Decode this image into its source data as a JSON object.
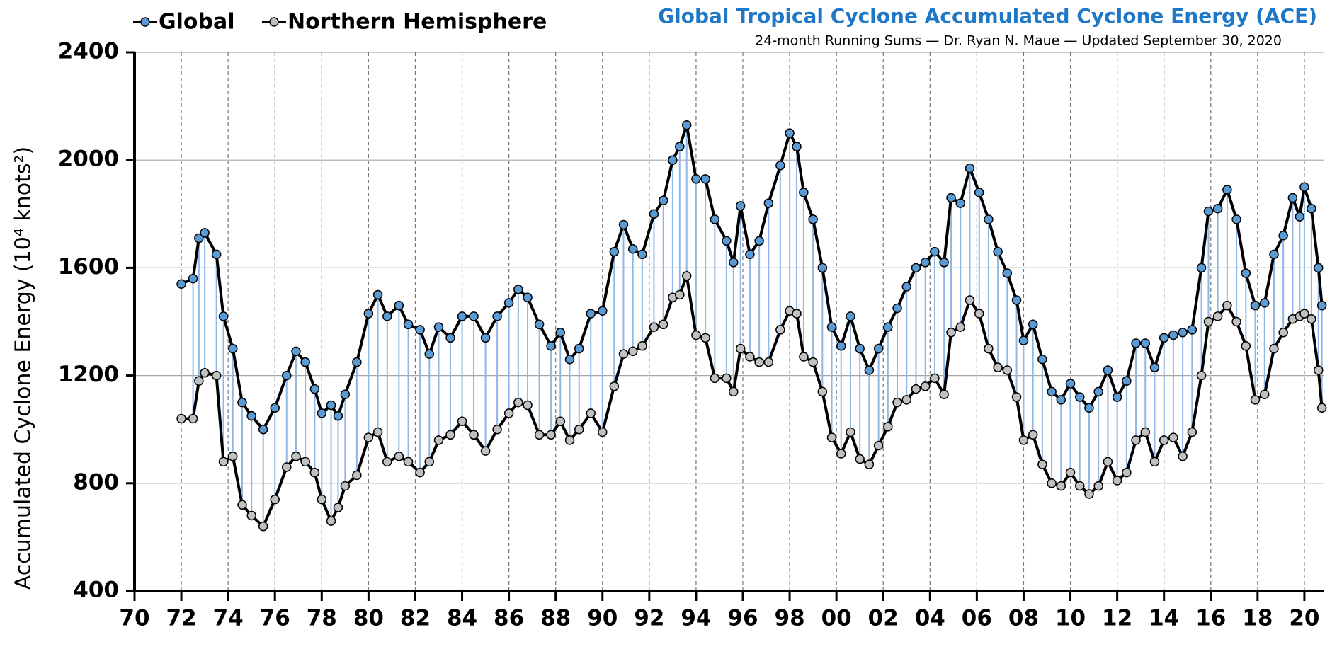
{
  "chart_data": {
    "type": "line",
    "title": "Global Tropical Cyclone Accumulated Cyclone Energy (ACE)",
    "subtitle": "24-month Running Sums — Dr. Ryan N. Maue — Updated September 30, 2020",
    "y_label": "Accumulated Cyclone Energy (10⁴ knots²)",
    "x": [
      1972.0,
      1972.5,
      1972.75,
      1973.0,
      1973.5,
      1973.8,
      1974.2,
      1974.6,
      1975.0,
      1975.5,
      1976.0,
      1976.5,
      1976.9,
      1977.3,
      1977.7,
      1978.0,
      1978.4,
      1978.7,
      1979.0,
      1979.5,
      1980.0,
      1980.4,
      1980.8,
      1981.3,
      1981.7,
      1982.2,
      1982.6,
      1983.0,
      1983.5,
      1984.0,
      1984.5,
      1985.0,
      1985.5,
      1986.0,
      1986.4,
      1986.8,
      1987.3,
      1987.8,
      1988.2,
      1988.6,
      1989.0,
      1989.5,
      1990.0,
      1990.5,
      1990.9,
      1991.3,
      1991.7,
      1992.2,
      1992.6,
      1993.0,
      1993.3,
      1993.6,
      1994.0,
      1994.4,
      1994.8,
      1995.3,
      1995.6,
      1995.9,
      1996.3,
      1996.7,
      1997.1,
      1997.6,
      1998.0,
      1998.3,
      1998.6,
      1999.0,
      1999.4,
      1999.8,
      2000.2,
      2000.6,
      2001.0,
      2001.4,
      2001.8,
      2002.2,
      2002.6,
      2003.0,
      2003.4,
      2003.8,
      2004.2,
      2004.6,
      2004.9,
      2005.3,
      2005.7,
      2006.1,
      2006.5,
      2006.9,
      2007.3,
      2007.7,
      2008.0,
      2008.4,
      2008.8,
      2009.2,
      2009.6,
      2010.0,
      2010.4,
      2010.8,
      2011.2,
      2011.6,
      2012.0,
      2012.4,
      2012.8,
      2013.2,
      2013.6,
      2014.0,
      2014.4,
      2014.8,
      2015.2,
      2015.6,
      2015.9,
      2016.3,
      2016.7,
      2017.1,
      2017.5,
      2017.9,
      2018.3,
      2018.7,
      2019.1,
      2019.5,
      2019.8,
      2020.0,
      2020.3,
      2020.6,
      2020.75
    ],
    "series": [
      {
        "name": "Global",
        "color": "#5b9bd5",
        "values": [
          1540,
          1560,
          1710,
          1730,
          1650,
          1420,
          1300,
          1100,
          1050,
          1000,
          1080,
          1200,
          1290,
          1250,
          1150,
          1060,
          1090,
          1050,
          1130,
          1250,
          1430,
          1500,
          1420,
          1460,
          1390,
          1370,
          1280,
          1380,
          1340,
          1420,
          1420,
          1340,
          1420,
          1470,
          1520,
          1490,
          1390,
          1310,
          1360,
          1260,
          1300,
          1430,
          1440,
          1660,
          1760,
          1670,
          1650,
          1800,
          1850,
          2000,
          2050,
          2130,
          1930,
          1930,
          1780,
          1700,
          1620,
          1830,
          1650,
          1700,
          1840,
          1980,
          2100,
          2050,
          1880,
          1780,
          1600,
          1380,
          1310,
          1420,
          1300,
          1220,
          1300,
          1380,
          1450,
          1530,
          1600,
          1620,
          1660,
          1620,
          1860,
          1840,
          1970,
          1880,
          1780,
          1660,
          1580,
          1480,
          1330,
          1390,
          1260,
          1140,
          1110,
          1170,
          1120,
          1080,
          1140,
          1220,
          1120,
          1180,
          1320,
          1320,
          1230,
          1340,
          1350,
          1360,
          1370,
          1600,
          1810,
          1820,
          1890,
          1780,
          1580,
          1460,
          1470,
          1650,
          1720,
          1860,
          1790,
          1900,
          1820,
          1600,
          1460
        ]
      },
      {
        "name": "Northern Hemisphere",
        "color": "#c0c0c0",
        "values": [
          1040,
          1040,
          1180,
          1210,
          1200,
          880,
          900,
          720,
          680,
          640,
          740,
          860,
          900,
          880,
          840,
          740,
          660,
          710,
          790,
          830,
          970,
          990,
          880,
          900,
          880,
          840,
          880,
          960,
          980,
          1030,
          980,
          920,
          1000,
          1060,
          1100,
          1090,
          980,
          980,
          1030,
          960,
          1000,
          1060,
          990,
          1160,
          1280,
          1290,
          1310,
          1380,
          1390,
          1490,
          1500,
          1570,
          1350,
          1340,
          1190,
          1190,
          1140,
          1300,
          1270,
          1250,
          1250,
          1370,
          1440,
          1430,
          1270,
          1250,
          1140,
          970,
          910,
          990,
          890,
          870,
          940,
          1010,
          1100,
          1110,
          1150,
          1160,
          1190,
          1130,
          1360,
          1380,
          1480,
          1430,
          1300,
          1230,
          1220,
          1120,
          960,
          980,
          870,
          800,
          790,
          840,
          790,
          760,
          790,
          880,
          810,
          840,
          960,
          990,
          880,
          960,
          970,
          900,
          990,
          1200,
          1400,
          1420,
          1460,
          1400,
          1310,
          1110,
          1130,
          1300,
          1360,
          1410,
          1420,
          1430,
          1410,
          1220,
          1080
        ]
      }
    ],
    "xlim": [
      1970,
      2020.85
    ],
    "xticks": [
      {
        "value": 1970,
        "label": "70"
      },
      {
        "value": 1972,
        "label": "72"
      },
      {
        "value": 1974,
        "label": "74"
      },
      {
        "value": 1976,
        "label": "76"
      },
      {
        "value": 1978,
        "label": "78"
      },
      {
        "value": 1980,
        "label": "80"
      },
      {
        "value": 1982,
        "label": "82"
      },
      {
        "value": 1984,
        "label": "84"
      },
      {
        "value": 1986,
        "label": "86"
      },
      {
        "value": 1988,
        "label": "88"
      },
      {
        "value": 1990,
        "label": "90"
      },
      {
        "value": 1992,
        "label": "92"
      },
      {
        "value": 1994,
        "label": "94"
      },
      {
        "value": 1996,
        "label": "96"
      },
      {
        "value": 1998,
        "label": "98"
      },
      {
        "value": 2000,
        "label": "00"
      },
      {
        "value": 2002,
        "label": "02"
      },
      {
        "value": 2004,
        "label": "04"
      },
      {
        "value": 2006,
        "label": "06"
      },
      {
        "value": 2008,
        "label": "08"
      },
      {
        "value": 2010,
        "label": "10"
      },
      {
        "value": 2012,
        "label": "12"
      },
      {
        "value": 2014,
        "label": "14"
      },
      {
        "value": 2016,
        "label": "16"
      },
      {
        "value": 2018,
        "label": "18"
      },
      {
        "value": 2020,
        "label": "20"
      }
    ],
    "ylim": [
      400,
      2400
    ],
    "yticks": [
      400,
      800,
      1200,
      1600,
      2000,
      2400
    ],
    "grid": true
  }
}
